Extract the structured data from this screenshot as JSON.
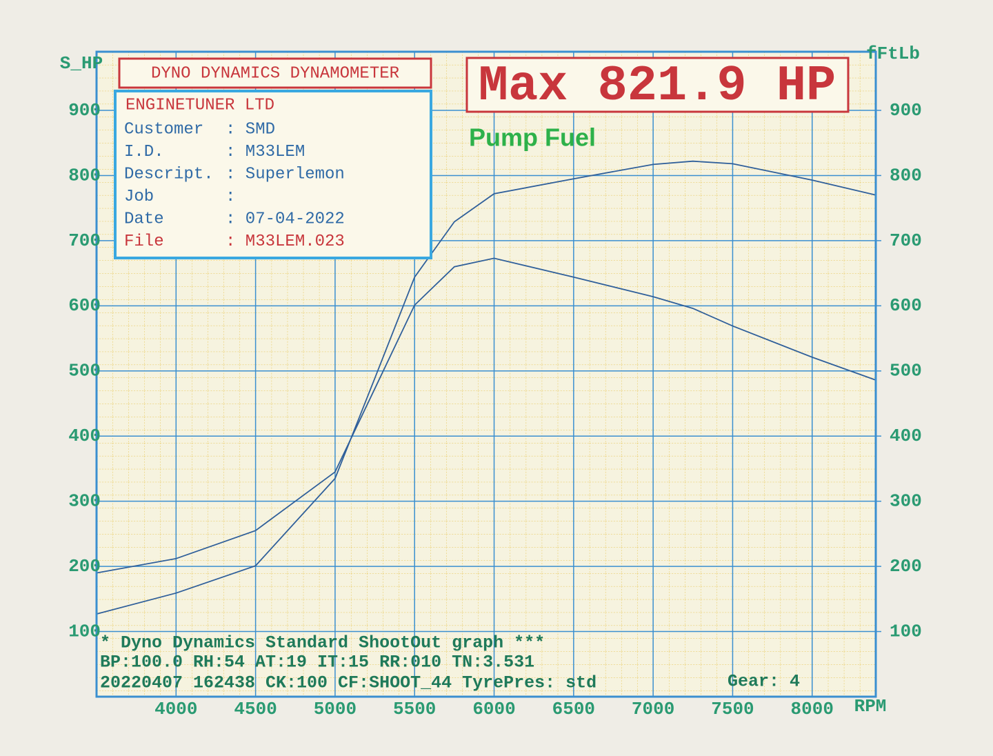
{
  "chart_data": {
    "type": "line",
    "header": "DYNO DYNAMICS DYNAMOMETER",
    "title": "Max 821.9 HP",
    "annotation": "Pump Fuel",
    "info": {
      "company": "ENGINETUNER LTD",
      "fields": [
        {
          "label": "Customer",
          "value": ": SMD"
        },
        {
          "label": "I.D.",
          "value": ": M33LEM"
        },
        {
          "label": "Descript.",
          "value": ": Superlemon"
        },
        {
          "label": "Job",
          "value": ":"
        },
        {
          "label": "Date",
          "value": ": 07-04-2022"
        },
        {
          "label": "File",
          "value": ": M33LEM.023"
        }
      ]
    },
    "footer": [
      "* Dyno Dynamics Standard ShootOut graph ***",
      "BP:100.0 RH:54 AT:19 IT:15  RR:010 TN:3.531",
      "20220407 162438 CK:100 CF:SHOOT_44 TyrePres: std",
      "Gear: 4"
    ],
    "ylabel": "S_HP",
    "y2label": "fFtLb",
    "xlabel": "RPM",
    "x": [
      3500,
      4000,
      4500,
      5000,
      5250,
      5500,
      5750,
      6000,
      6500,
      7000,
      7250,
      7500,
      8000,
      8400
    ],
    "series": [
      {
        "color": "#2f5f9a",
        "values": [
          127,
          159,
          201,
          335,
          489,
          644,
          729,
          772,
          795,
          817,
          822,
          818,
          793,
          770
        ]
      },
      {
        "color": "#2f5f9a",
        "axis": "y2",
        "values": [
          190,
          212,
          255,
          345,
          473,
          601,
          660,
          673,
          644,
          614,
          596,
          569,
          521,
          486
        ]
      }
    ],
    "xlim": [
      3500,
      8400
    ],
    "xticks": [
      4000,
      4500,
      5000,
      5500,
      6000,
      6500,
      7000,
      7500,
      8000
    ],
    "ylim": [
      0,
      990
    ],
    "yticks": [
      100,
      200,
      300,
      400,
      500,
      600,
      700,
      800,
      900
    ],
    "y2lim": [
      0,
      990
    ],
    "y2ticks": [
      100,
      200,
      300,
      400,
      500,
      600,
      700,
      800,
      900
    ],
    "grid": true
  }
}
